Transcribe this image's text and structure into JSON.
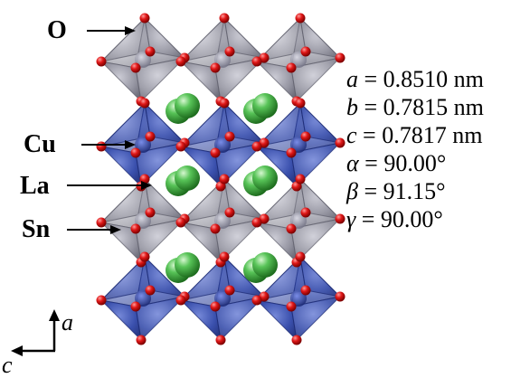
{
  "labels": {
    "oxygen": "O",
    "copper": "Cu",
    "lanthanum": "La",
    "tin": "Sn"
  },
  "lattice": [
    {
      "symbol": "a",
      "value": " = 0.8510 nm"
    },
    {
      "symbol": "b",
      "value": " = 0.7815 nm"
    },
    {
      "symbol": "c",
      "value": " = 0.7817 nm"
    },
    {
      "symbol": "α",
      "value": " = 90.00°"
    },
    {
      "symbol": "β",
      "value": " = 91.15°"
    },
    {
      "symbol": "γ",
      "value": " = 90.00°"
    }
  ],
  "axes": {
    "vertical": "a",
    "horizontal": "c"
  },
  "colors": {
    "copper_octahedra": "#2a3f9e",
    "tin_octahedra": "#8d8d99",
    "oxygen": "#d01010",
    "lanthanum": "#3cb43c"
  }
}
